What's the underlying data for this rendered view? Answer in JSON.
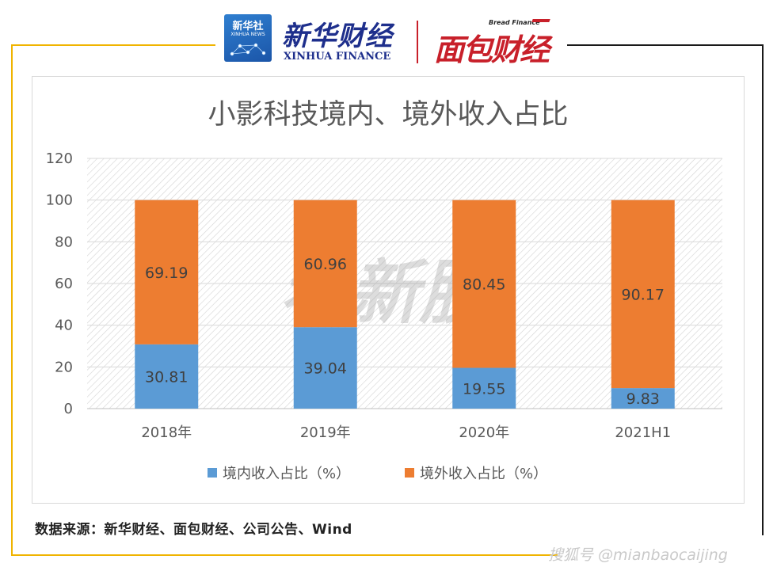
{
  "header": {
    "xinhua_logo_cn": "新华社",
    "xinhua_logo_en": "XINHUA NEWS",
    "xinhua_finance_cn": "新华财经",
    "xinhua_finance_en": "XINHUA FINANCE",
    "bread_finance_en": "Bread Finance",
    "bread_finance_cn": "面包财经"
  },
  "colors": {
    "domestic": "#5b9bd5",
    "overseas": "#ed7d31",
    "frame_gold": "#f0b400",
    "brand_red": "#c8202a",
    "brand_blue": "#1e2f8c"
  },
  "chart_data": {
    "type": "bar",
    "stacked": true,
    "title": "小影科技境内、境外收入占比",
    "categories": [
      "2018年",
      "2019年",
      "2020年",
      "2021H1"
    ],
    "series": [
      {
        "name": "境内收入占比（%）",
        "values": [
          30.81,
          39.04,
          19.55,
          9.83
        ]
      },
      {
        "name": "境外收入占比（%）",
        "values": [
          69.19,
          60.96,
          80.45,
          90.17
        ]
      }
    ],
    "value_labels": [
      [
        "30.81",
        "39.04",
        "19.55",
        "9.83"
      ],
      [
        "69.19",
        "60.96",
        "80.45",
        "90.17"
      ]
    ],
    "ylim": [
      0,
      120
    ],
    "yticks": [
      "0",
      "20",
      "40",
      "60",
      "80",
      "100",
      "120"
    ],
    "grid": true,
    "legend_position": "bottom",
    "watermark": "看新股"
  },
  "footer": {
    "source": "数据来源：新华财经、面包财经、公司公告、Wind",
    "account": "搜狐号 @mianbaocaijing"
  }
}
